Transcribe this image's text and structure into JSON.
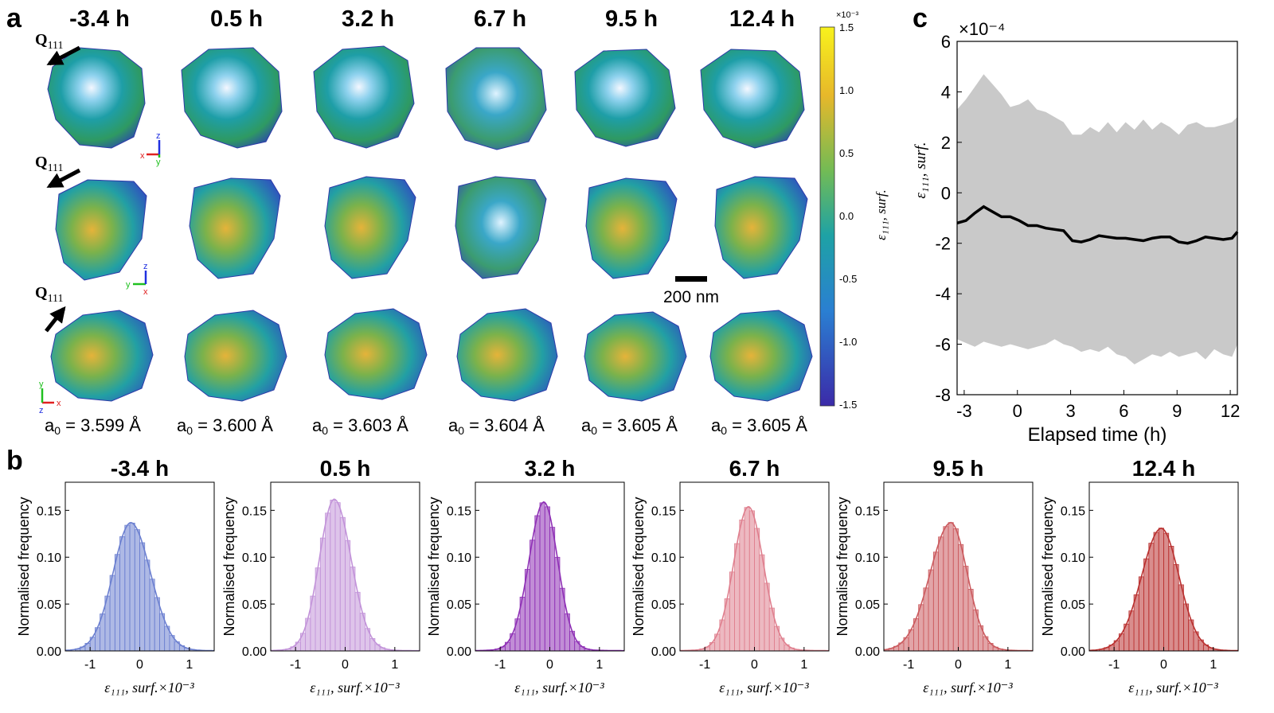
{
  "figure": {
    "panel_letters": {
      "a": "a",
      "b": "b",
      "c": "c"
    },
    "colors": {
      "blue": "#3b2fc7",
      "teal": "#1ea4a8",
      "green": "#3aa85a",
      "yellow": "#f0d21c",
      "gray_band": "#c9c9c9",
      "black": "#000000"
    }
  },
  "panel_a": {
    "times": [
      "-3.4 h",
      "0.5 h",
      "3.2 h",
      "6.7 h",
      "9.5 h",
      "12.4 h"
    ],
    "q_label": "Q",
    "q_sub": "111",
    "rows": [
      {
        "axes": {
          "h": "x",
          "v": "z",
          "d": "y"
        }
      },
      {
        "axes": {
          "h": "y",
          "v": "z",
          "d": "x"
        }
      },
      {
        "axes": {
          "h": "x",
          "v": "y",
          "d": "z"
        }
      }
    ],
    "lattice_prefix": "a",
    "lattice_sub": "0",
    "lattice_values": [
      "= 3.599 Å",
      "= 3.600 Å",
      "= 3.603 Å",
      "= 3.604 Å",
      "= 3.605 Å",
      "= 3.605 Å"
    ],
    "scale_bar_label": "200 nm",
    "colorbar": {
      "exponent_label": "×10⁻³",
      "ticks": [
        "1.5",
        "1.0",
        "0.5",
        "0.0",
        "-0.5",
        "-1.0",
        "-1.5"
      ],
      "label": "ε₁₁₁, surf."
    }
  },
  "chart_data": [
    {
      "type": "area",
      "panel": "c",
      "title": "",
      "xlabel": "Elapsed time (h)",
      "ylabel": "ε₁₁₁, surf.",
      "y_exponent_label": "×10⁻⁴",
      "xlim": [
        -3.4,
        12.4
      ],
      "ylim": [
        -8,
        6
      ],
      "xticks": [
        "-3",
        "0",
        "3",
        "6",
        "9",
        "12"
      ],
      "yticks": [
        "6",
        "4",
        "2",
        "0",
        "-2",
        "-4",
        "-6",
        "-8"
      ],
      "x": [
        -3.4,
        -2.9,
        -2.4,
        -1.9,
        -1.4,
        -0.9,
        -0.4,
        0.1,
        0.6,
        1.1,
        1.6,
        2.1,
        2.6,
        3.1,
        3.6,
        4.1,
        4.6,
        5.1,
        5.6,
        6.1,
        6.6,
        7.1,
        7.6,
        8.1,
        8.6,
        9.1,
        9.6,
        10.1,
        10.6,
        11.1,
        11.6,
        12.1,
        12.4
      ],
      "series": [
        {
          "name": "mean",
          "values": [
            -1.2,
            -1.1,
            -0.8,
            -0.55,
            -0.75,
            -0.95,
            -0.95,
            -1.1,
            -1.3,
            -1.3,
            -1.4,
            -1.45,
            -1.5,
            -1.9,
            -1.95,
            -1.85,
            -1.7,
            -1.75,
            -1.8,
            -1.8,
            -1.85,
            -1.9,
            -1.8,
            -1.75,
            -1.75,
            -1.95,
            -2.0,
            -1.9,
            -1.75,
            -1.8,
            -1.85,
            -1.8,
            -1.55
          ]
        },
        {
          "name": "upper",
          "values": [
            3.3,
            3.7,
            4.2,
            4.7,
            4.3,
            3.9,
            3.4,
            3.5,
            3.7,
            3.3,
            3.2,
            3.0,
            2.8,
            2.3,
            2.3,
            2.6,
            2.4,
            2.8,
            2.4,
            2.8,
            2.5,
            2.9,
            2.5,
            2.8,
            2.6,
            2.3,
            2.7,
            2.8,
            2.6,
            2.6,
            2.7,
            2.8,
            3.0
          ]
        },
        {
          "name": "lower",
          "values": [
            -5.8,
            -5.95,
            -6.1,
            -5.9,
            -6.0,
            -6.1,
            -6.0,
            -6.1,
            -6.2,
            -6.1,
            -6.0,
            -5.8,
            -6.0,
            -6.1,
            -6.3,
            -6.2,
            -6.3,
            -6.1,
            -6.4,
            -6.5,
            -6.8,
            -6.6,
            -6.4,
            -6.5,
            -6.3,
            -6.5,
            -6.4,
            -6.3,
            -6.6,
            -6.2,
            -6.4,
            -6.5,
            -6.0
          ]
        }
      ]
    },
    {
      "type": "bar",
      "panel": "b",
      "xlabel": "ε₁₁₁, surf.×10⁻³",
      "ylabel": "Normalised frequency",
      "xlim": [
        -1.5,
        1.5
      ],
      "ylim": [
        0,
        0.18
      ],
      "xticks": [
        "-1",
        "0",
        "1"
      ],
      "yticks": [
        "0.00",
        "0.05",
        "0.10",
        "0.15"
      ],
      "bin_width": 0.1,
      "subplots": [
        {
          "title": "-3.4 h",
          "color": "#6b7fd0",
          "peak": 0.133,
          "center": -0.18,
          "sigma_left": 0.36,
          "sigma_right": 0.4
        },
        {
          "title": "0.5 h",
          "color": "#c293d9",
          "peak": 0.158,
          "center": -0.22,
          "sigma_left": 0.3,
          "sigma_right": 0.34
        },
        {
          "title": "3.2 h",
          "color": "#8e2fb5",
          "peak": 0.155,
          "center": -0.12,
          "sigma_left": 0.3,
          "sigma_right": 0.28
        },
        {
          "title": "6.7 h",
          "color": "#df7f8e",
          "peak": 0.15,
          "center": -0.12,
          "sigma_left": 0.3,
          "sigma_right": 0.3
        },
        {
          "title": "9.5 h",
          "color": "#cb5a5e",
          "peak": 0.133,
          "center": -0.15,
          "sigma_left": 0.42,
          "sigma_right": 0.33
        },
        {
          "title": "12.4 h",
          "color": "#b9302f",
          "peak": 0.127,
          "center": -0.05,
          "sigma_left": 0.4,
          "sigma_right": 0.36
        }
      ]
    }
  ]
}
